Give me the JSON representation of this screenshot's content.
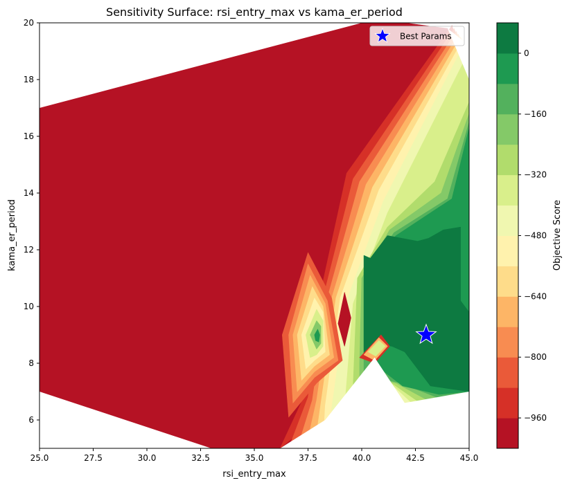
{
  "chart_data": {
    "type": "contourf",
    "title": "Sensitivity Surface: rsi_entry_max vs kama_er_period",
    "xlabel": "rsi_entry_max",
    "ylabel": "kama_er_period",
    "xlim": [
      25,
      45
    ],
    "ylim": [
      5,
      20
    ],
    "xticks": [
      "25.0",
      "27.5",
      "30.0",
      "32.5",
      "35.0",
      "37.5",
      "40.0",
      "42.5",
      "45.0"
    ],
    "xtick_values": [
      25,
      27.5,
      30,
      32.5,
      35,
      37.5,
      40,
      42.5,
      45
    ],
    "yticks": [
      "6",
      "8",
      "10",
      "12",
      "14",
      "16",
      "18",
      "20"
    ],
    "ytick_values": [
      6,
      8,
      10,
      12,
      14,
      16,
      18,
      20
    ],
    "best_params": {
      "label": "Best Params",
      "x": 43,
      "y": 9,
      "color": "#0000ff"
    },
    "legend": {
      "entries": [
        "Best Params"
      ],
      "placement": "top-right"
    },
    "colorbar": {
      "label": "Objective Score",
      "tick_labels": [
        "0",
        "−160",
        "−320",
        "−480",
        "−640",
        "−800",
        "−960"
      ],
      "tick_values": [
        0,
        -160,
        -320,
        -480,
        -640,
        -800,
        -960
      ],
      "range": [
        -1040,
        80
      ],
      "levels": [
        -1040,
        -960,
        -880,
        -800,
        -720,
        -640,
        -560,
        -480,
        -400,
        -320,
        -240,
        -160,
        -80,
        0,
        80
      ],
      "colors": [
        "#b51224",
        "#d63027",
        "#ea5a39",
        "#f88c51",
        "#fdb566",
        "#fedc8a",
        "#fff2ad",
        "#f0f7b0",
        "#d9ef8b",
        "#b1dc6c",
        "#84c968",
        "#53b15d",
        "#1e9a51",
        "#0d7a41"
      ]
    },
    "regions": [
      {
        "level": 0,
        "points": [
          [
            25,
            7
          ],
          [
            33,
            5
          ],
          [
            36.2,
            5
          ],
          [
            38.3,
            6
          ],
          [
            40.6,
            8.2
          ],
          [
            42,
            6.6
          ],
          [
            45,
            7
          ],
          [
            45,
            18
          ],
          [
            44,
            19.8
          ],
          [
            40,
            20.2
          ],
          [
            25,
            17
          ]
        ]
      },
      {
        "level": 1,
        "points": [
          [
            36.2,
            5
          ],
          [
            38.1,
            6.2
          ],
          [
            40.4,
            8.1
          ],
          [
            41.9,
            6.5
          ],
          [
            45,
            6.9
          ],
          [
            45,
            18.1
          ],
          [
            44.2,
            19.9
          ],
          [
            39.3,
            14.7
          ],
          [
            38,
            10.2
          ],
          [
            37.3,
            6.8
          ]
        ]
      },
      {
        "level": 2,
        "points": [
          [
            36.6,
            5
          ],
          [
            38.3,
            6.4
          ],
          [
            40.5,
            8
          ],
          [
            42,
            6.4
          ],
          [
            45,
            6.8
          ],
          [
            45,
            18.3
          ],
          [
            44.3,
            19.8
          ],
          [
            39.6,
            14.5
          ],
          [
            38.2,
            10.3
          ],
          [
            37.5,
            6.8
          ]
        ]
      },
      {
        "level": 3,
        "points": [
          [
            37,
            5
          ],
          [
            38.5,
            6.5
          ],
          [
            40.6,
            7.9
          ],
          [
            42.1,
            6.3
          ],
          [
            45,
            6.7
          ],
          [
            45,
            18.5
          ],
          [
            44.4,
            19.7
          ],
          [
            39.9,
            14.4
          ],
          [
            38.4,
            10.3
          ],
          [
            37.7,
            6.7
          ]
        ]
      },
      {
        "level": 4,
        "points": [
          [
            37.4,
            5
          ],
          [
            38.7,
            6.6
          ],
          [
            40.7,
            7.8
          ],
          [
            42.2,
            6.2
          ],
          [
            45,
            6.6
          ],
          [
            45,
            18.6
          ],
          [
            44.5,
            19.6
          ],
          [
            40.2,
            14.3
          ],
          [
            38.6,
            10.3
          ],
          [
            37.9,
            6.7
          ]
        ]
      },
      {
        "level": 5,
        "points": [
          [
            37.8,
            5
          ],
          [
            38.9,
            6.6
          ],
          [
            40.8,
            7.7
          ],
          [
            42.3,
            6.1
          ],
          [
            45,
            6.5
          ],
          [
            45,
            18.8
          ],
          [
            44.6,
            19.5
          ],
          [
            40.5,
            14.2
          ],
          [
            38.8,
            10.3
          ],
          [
            38.1,
            6.6
          ]
        ]
      },
      {
        "level": 6,
        "points": [
          [
            38.2,
            5
          ],
          [
            39.1,
            6.6
          ],
          [
            40.9,
            7.6
          ],
          [
            42.4,
            6
          ],
          [
            45,
            6.4
          ],
          [
            45,
            18.9
          ],
          [
            44.7,
            19.4
          ],
          [
            40.8,
            14.1
          ],
          [
            39,
            10.3
          ],
          [
            38.3,
            6.5
          ]
        ]
      },
      {
        "level": 7,
        "points": [
          [
            38.7,
            5.4
          ],
          [
            39.3,
            6.7
          ],
          [
            41,
            7.5
          ],
          [
            42.6,
            6
          ],
          [
            45,
            6.3
          ],
          [
            45,
            19
          ],
          [
            44.8,
            19.3
          ],
          [
            41,
            13.7
          ],
          [
            39.3,
            10.2
          ],
          [
            38.6,
            6.4
          ]
        ]
      },
      {
        "level": 8,
        "points": [
          [
            39.3,
            5.9
          ],
          [
            39.6,
            6.7
          ],
          [
            41.2,
            7.4
          ],
          [
            42.9,
            6.2
          ],
          [
            45,
            6.4
          ],
          [
            45,
            19
          ],
          [
            45,
            19
          ],
          [
            41.2,
            13.3
          ],
          [
            39.6,
            10.1
          ],
          [
            39.2,
            6.4
          ]
        ]
      },
      {
        "level": 9,
        "points": [
          [
            39.7,
            6.3
          ],
          [
            40.1,
            6.9
          ],
          [
            41.4,
            7.3
          ],
          [
            43.1,
            6.4
          ],
          [
            45,
            6.6
          ],
          [
            45,
            17.2
          ],
          [
            43.4,
            14.4
          ],
          [
            41.2,
            12.8
          ],
          [
            39.8,
            11
          ],
          [
            39.6,
            7.2
          ]
        ]
      },
      {
        "level": 10,
        "points": [
          [
            39.9,
            7
          ],
          [
            40.5,
            7.5
          ],
          [
            41.6,
            7.3
          ],
          [
            43.3,
            6.6
          ],
          [
            45,
            6.8
          ],
          [
            45,
            16.8
          ],
          [
            43.7,
            14
          ],
          [
            41.3,
            12.7
          ],
          [
            40,
            11
          ],
          [
            39.9,
            8
          ]
        ]
      },
      {
        "level": 11,
        "points": [
          [
            40.1,
            7.6
          ],
          [
            41.8,
            7.3
          ],
          [
            43.5,
            6.8
          ],
          [
            45,
            6.95
          ],
          [
            45,
            16.5
          ],
          [
            44,
            13.8
          ],
          [
            41.5,
            12.6
          ],
          [
            40.1,
            11
          ],
          [
            40.1,
            8.6
          ]
        ]
      },
      {
        "level": 12,
        "points": [
          [
            40.2,
            8.2
          ],
          [
            41.9,
            7.2
          ],
          [
            43.6,
            6.9
          ],
          [
            45,
            7
          ],
          [
            45,
            16.3
          ],
          [
            44.2,
            13.8
          ],
          [
            41.6,
            12.5
          ],
          [
            40.1,
            11.2
          ]
        ]
      },
      {
        "level": 13,
        "points": [
          [
            40.1,
            11.8
          ],
          [
            40.1,
            8.3
          ],
          [
            40.6,
            8.7
          ],
          [
            41.4,
            8.6
          ],
          [
            42,
            8.4
          ],
          [
            43.2,
            7.2
          ],
          [
            45,
            7
          ],
          [
            45,
            9.8
          ],
          [
            44.6,
            10.2
          ],
          [
            44.6,
            12.8
          ],
          [
            43.8,
            12.7
          ],
          [
            43.1,
            12.4
          ],
          [
            42.6,
            12.3
          ],
          [
            41.2,
            12.5
          ],
          [
            40.4,
            11.7
          ]
        ]
      },
      {
        "level": 0,
        "points": [
          [
            39.2,
            8.6
          ],
          [
            39.5,
            9.6
          ],
          [
            39.2,
            10.5
          ],
          [
            38.9,
            9.4
          ]
        ]
      }
    ],
    "islands": [
      {
        "level": 2,
        "points": [
          [
            36.3,
            9
          ],
          [
            37.5,
            11.9
          ],
          [
            38.6,
            10.3
          ],
          [
            39.1,
            8.1
          ],
          [
            37.9,
            7.3
          ],
          [
            36.6,
            6.1
          ]
        ]
      },
      {
        "level": 3,
        "points": [
          [
            36.6,
            9
          ],
          [
            37.5,
            11.5
          ],
          [
            38.4,
            10.2
          ],
          [
            38.9,
            8.1
          ],
          [
            37.8,
            7.5
          ],
          [
            36.8,
            6.6
          ]
        ]
      },
      {
        "level": 4,
        "points": [
          [
            36.8,
            9
          ],
          [
            37.6,
            11.1
          ],
          [
            38.3,
            10.1
          ],
          [
            38.7,
            8.2
          ],
          [
            37.8,
            7.7
          ],
          [
            37,
            7
          ]
        ]
      },
      {
        "level": 5,
        "points": [
          [
            37,
            9
          ],
          [
            37.7,
            10.7
          ],
          [
            38.2,
            10
          ],
          [
            38.5,
            8.3
          ],
          [
            37.8,
            7.9
          ],
          [
            37.2,
            7.4
          ]
        ]
      },
      {
        "level": 6,
        "points": [
          [
            37.2,
            9
          ],
          [
            37.8,
            10.3
          ],
          [
            38.2,
            9.8
          ],
          [
            38.3,
            8.4
          ],
          [
            37.8,
            8.1
          ],
          [
            37.4,
            7.8
          ]
        ]
      },
      {
        "level": 8,
        "points": [
          [
            37.4,
            9
          ],
          [
            37.9,
            9.9
          ],
          [
            38.2,
            9.5
          ],
          [
            38.2,
            8.6
          ],
          [
            37.9,
            8.3
          ],
          [
            37.6,
            8.2
          ]
        ]
      },
      {
        "level": 10,
        "points": [
          [
            37.6,
            9
          ],
          [
            37.9,
            9.5
          ],
          [
            38.1,
            9.3
          ],
          [
            38.1,
            8.7
          ],
          [
            37.9,
            8.5
          ]
        ]
      },
      {
        "level": 12,
        "points": [
          [
            37.8,
            9
          ],
          [
            37.95,
            9.2
          ],
          [
            38.05,
            9
          ],
          [
            38,
            8.75
          ],
          [
            37.85,
            8.8
          ]
        ]
      },
      {
        "level": 1,
        "points": [
          [
            39.9,
            8.2
          ],
          [
            40.9,
            9
          ],
          [
            41.3,
            8.6
          ],
          [
            40.6,
            8
          ]
        ]
      },
      {
        "level": 4,
        "points": [
          [
            40.1,
            8.3
          ],
          [
            40.8,
            8.9
          ],
          [
            41.2,
            8.6
          ],
          [
            40.6,
            8.1
          ]
        ]
      },
      {
        "level": 8,
        "points": [
          [
            40.3,
            8.4
          ],
          [
            40.8,
            8.8
          ],
          [
            41.1,
            8.6
          ],
          [
            40.65,
            8.25
          ]
        ]
      }
    ],
    "white_cutouts": [
      {
        "points": [
          [
            25,
            5
          ],
          [
            33,
            5
          ],
          [
            25,
            7
          ]
        ]
      },
      {
        "points": [
          [
            25,
            17
          ],
          [
            40,
            20
          ],
          [
            25,
            20
          ]
        ]
      },
      {
        "points": [
          [
            36.2,
            5
          ],
          [
            45,
            5
          ],
          [
            45,
            7
          ],
          [
            42,
            6.6
          ],
          [
            40.6,
            8.2
          ],
          [
            38.3,
            6
          ]
        ]
      },
      {
        "points": [
          [
            44,
            19.8
          ],
          [
            45,
            18
          ],
          [
            45,
            19.2
          ]
        ]
      }
    ]
  }
}
